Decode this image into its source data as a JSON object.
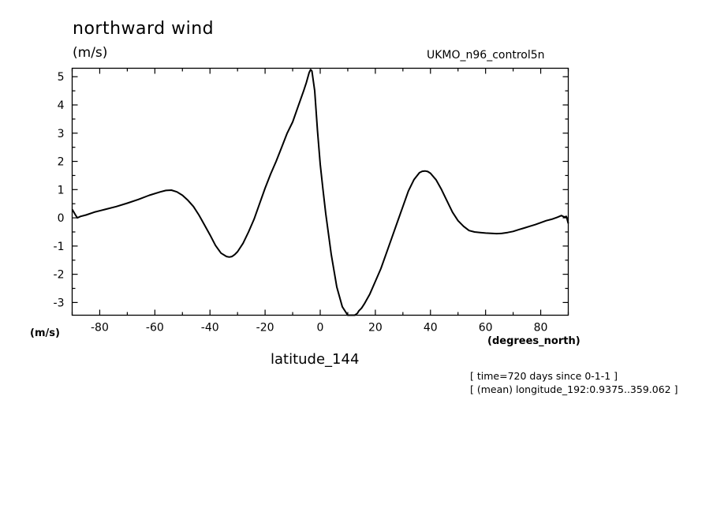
{
  "chart_data": {
    "type": "line",
    "title": "northward wind",
    "ylabel": "(m/s)",
    "y_units_lower": "(m/s)",
    "xlabel": "latitude_144",
    "x_units": "(degrees_north)",
    "source": "UKMO_n96_control5n",
    "annotations": [
      "[ time=720 days since 0-1-1 ]",
      "[ (mean) longitude_192:0.9375..359.062 ]"
    ],
    "xlim": [
      -90,
      90
    ],
    "ylim": [
      -3.45,
      5.3
    ],
    "xticks": [
      -80,
      -60,
      -40,
      -20,
      0,
      20,
      40,
      60,
      80
    ],
    "xtick_labels": [
      "-80",
      "-60",
      "-40",
      "-20",
      "0",
      "20",
      "40",
      "60",
      "80"
    ],
    "yticks": [
      -3,
      -2,
      -1,
      0,
      1,
      2,
      3,
      4,
      5
    ],
    "ytick_labels": [
      "-3",
      "-2",
      "-1",
      "0",
      "1",
      "2",
      "3",
      "4",
      "5"
    ],
    "series": [
      {
        "x": [
          -90,
          -89.4,
          -88.8,
          -88.1,
          -87,
          -85,
          -82,
          -78,
          -74,
          -70,
          -66,
          -62,
          -58,
          -56,
          -54,
          -52,
          -50,
          -48,
          -46,
          -44,
          -42,
          -40,
          -38,
          -36,
          -34,
          -33,
          -32,
          -31,
          -30,
          -28,
          -26,
          -24,
          -22,
          -20,
          -18,
          -16,
          -14,
          -12,
          -10,
          -8,
          -6,
          -5,
          -4,
          -3.5,
          -3,
          -2,
          -1,
          0,
          1,
          2,
          4,
          6,
          8,
          10,
          11,
          12,
          12.5,
          13,
          13.5,
          14,
          15,
          16,
          18,
          20,
          22,
          24,
          26,
          28,
          30,
          32,
          34,
          36,
          37,
          38,
          39,
          40,
          42,
          44,
          46,
          48,
          50,
          52,
          54,
          56,
          58,
          60,
          62,
          64,
          66,
          68,
          70,
          72,
          74,
          76,
          78,
          80,
          82,
          84,
          86,
          87.5,
          88.5,
          89.3,
          90
        ],
        "values": [
          0.3,
          0.2,
          0.1,
          0.0,
          0.05,
          0.1,
          0.2,
          0.3,
          0.4,
          0.52,
          0.65,
          0.8,
          0.92,
          0.97,
          0.98,
          0.92,
          0.8,
          0.62,
          0.4,
          0.1,
          -0.25,
          -0.6,
          -0.98,
          -1.25,
          -1.37,
          -1.39,
          -1.37,
          -1.3,
          -1.2,
          -0.9,
          -0.5,
          -0.05,
          0.5,
          1.05,
          1.55,
          2.0,
          2.5,
          3.0,
          3.4,
          3.95,
          4.5,
          4.8,
          5.15,
          5.25,
          5.2,
          4.5,
          3.1,
          1.9,
          1.0,
          0.15,
          -1.3,
          -2.45,
          -3.15,
          -3.45,
          -3.5,
          -3.48,
          -3.45,
          -3.42,
          -3.38,
          -3.3,
          -3.2,
          -3.05,
          -2.7,
          -2.25,
          -1.8,
          -1.25,
          -0.7,
          -0.15,
          0.4,
          0.95,
          1.35,
          1.6,
          1.65,
          1.66,
          1.64,
          1.58,
          1.35,
          1.0,
          0.6,
          0.2,
          -0.1,
          -0.3,
          -0.45,
          -0.5,
          -0.52,
          -0.54,
          -0.55,
          -0.56,
          -0.55,
          -0.52,
          -0.48,
          -0.42,
          -0.36,
          -0.3,
          -0.24,
          -0.17,
          -0.1,
          -0.05,
          0.02,
          0.08,
          0.03,
          0.05,
          -0.2
        ]
      }
    ],
    "grid": false,
    "line_color": "#000000"
  }
}
